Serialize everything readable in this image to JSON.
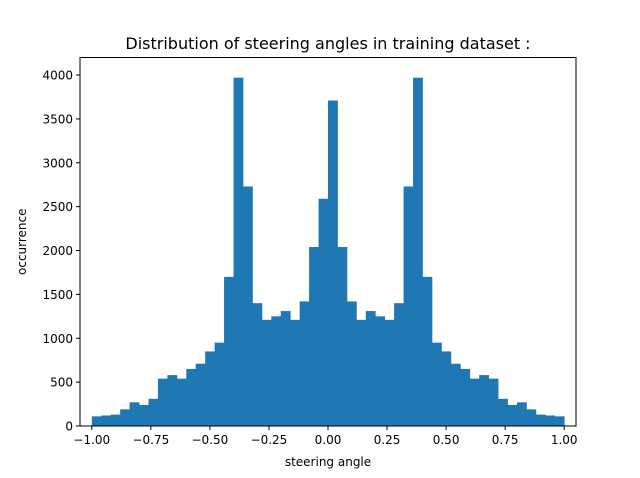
{
  "chart_data": {
    "type": "bar",
    "title": "Distribution of steering angles in training dataset :",
    "xlabel": "steering angle",
    "ylabel": "occurrence",
    "xlim": [
      -1.05,
      1.05
    ],
    "ylim": [
      0,
      4200
    ],
    "bin_start": -1.0,
    "bin_width": 0.04,
    "bar_color": "#1f77b4",
    "grid": false,
    "legend": "none",
    "x_ticks": [
      -1.0,
      -0.75,
      -0.5,
      -0.25,
      0.0,
      0.25,
      0.5,
      0.75,
      1.0
    ],
    "x_tick_labels": [
      "−1.00",
      "−0.75",
      "−0.50",
      "−0.25",
      "0.00",
      "0.25",
      "0.50",
      "0.75",
      "1.00"
    ],
    "y_ticks": [
      0,
      500,
      1000,
      1500,
      2000,
      2500,
      3000,
      3500,
      4000
    ],
    "y_tick_labels": [
      "0",
      "500",
      "1000",
      "1500",
      "2000",
      "2500",
      "3000",
      "3500",
      "4000"
    ],
    "values": [
      110,
      120,
      130,
      190,
      270,
      240,
      310,
      540,
      580,
      540,
      650,
      710,
      850,
      950,
      1700,
      3970,
      2730,
      1400,
      1210,
      1250,
      1310,
      1210,
      1420,
      2040,
      2590,
      3710,
      2040,
      1420,
      1210,
      1310,
      1250,
      1210,
      1400,
      2730,
      3970,
      1700,
      950,
      850,
      710,
      650,
      540,
      580,
      540,
      310,
      240,
      270,
      190,
      130,
      120,
      110
    ]
  }
}
